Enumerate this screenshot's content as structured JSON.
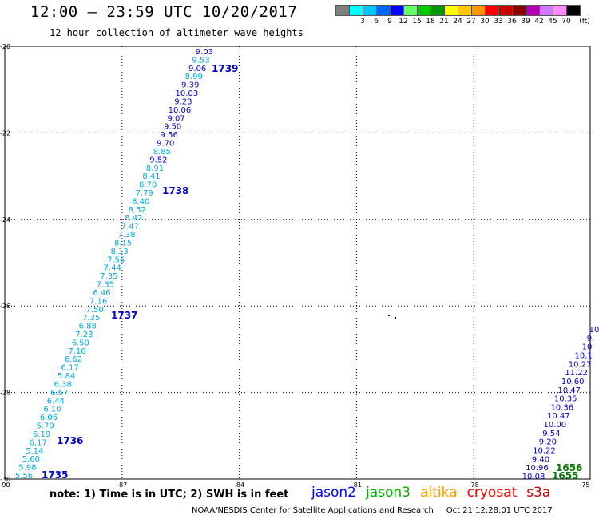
{
  "header": {
    "title": "12:00 — 23:59 UTC 10/20/2017",
    "subtitle": "12 hour collection of altimeter wave heights"
  },
  "legend": {
    "unit": "(ft)",
    "entries": [
      {
        "label": "",
        "color": "#808080"
      },
      {
        "label": "3",
        "color": "#00ffff"
      },
      {
        "label": "6",
        "color": "#00c8ff"
      },
      {
        "label": "9",
        "color": "#0064ff"
      },
      {
        "label": "12",
        "color": "#0000ff"
      },
      {
        "label": "15",
        "color": "#64ff64"
      },
      {
        "label": "18",
        "color": "#00cc00"
      },
      {
        "label": "21",
        "color": "#009600"
      },
      {
        "label": "24",
        "color": "#ffff00"
      },
      {
        "label": "27",
        "color": "#ffc800"
      },
      {
        "label": "30",
        "color": "#ff9600"
      },
      {
        "label": "33",
        "color": "#ff0000"
      },
      {
        "label": "36",
        "color": "#c80000"
      },
      {
        "label": "39",
        "color": "#8b0000"
      },
      {
        "label": "42",
        "color": "#b400b4"
      },
      {
        "label": "45",
        "color": "#d278ff"
      },
      {
        "label": "70",
        "color": "#ff8cff"
      },
      {
        "label": "(ft)",
        "color": "#000000"
      }
    ]
  },
  "map": {
    "lon_range": [
      -90,
      -75
    ],
    "lat_range": [
      -30,
      -20
    ],
    "lon_ticks": [
      "-90",
      "-87",
      "-84",
      "-81",
      "-78",
      "-75"
    ],
    "lat_ticks": [
      "-20",
      "-22",
      "-24",
      "-26",
      "-28",
      "-30"
    ],
    "colors": {
      "light": "#00aadd",
      "dark": "#0000cc",
      "green": "#007700"
    },
    "track1": {
      "values": [
        [
          "9.03",
          "dark"
        ],
        [
          "9.53",
          "light"
        ],
        [
          "9.06",
          "dark"
        ],
        [
          "8.99",
          "light"
        ],
        [
          "9.39",
          "dark"
        ],
        [
          "10.03",
          "dark"
        ],
        [
          "9.23",
          "dark"
        ],
        [
          "10.06",
          "dark"
        ],
        [
          "9.07",
          "dark"
        ],
        [
          "9.50",
          "dark"
        ],
        [
          "9.56",
          "dark"
        ],
        [
          "9.70",
          "dark"
        ],
        [
          "8.85",
          "light"
        ],
        [
          "9.52",
          "dark"
        ],
        [
          "8.91",
          "light"
        ],
        [
          "8.41",
          "light"
        ],
        [
          "8.70",
          "light"
        ],
        [
          "7.79",
          "light"
        ],
        [
          "8.40",
          "light"
        ],
        [
          "8.52",
          "light"
        ],
        [
          "8.42",
          "light"
        ],
        [
          "7.47",
          "light"
        ],
        [
          "7.38",
          "light"
        ],
        [
          "8.15",
          "light"
        ],
        [
          "8.13",
          "light"
        ],
        [
          "7.55",
          "light"
        ],
        [
          "7.44",
          "light"
        ],
        [
          "7.35",
          "light"
        ],
        [
          "7.35",
          "light"
        ],
        [
          "6.46",
          "light"
        ],
        [
          "7.16",
          "light"
        ],
        [
          "7.50",
          "light"
        ],
        [
          "7.35",
          "light"
        ],
        [
          "6.88",
          "light"
        ],
        [
          "7.23",
          "light"
        ],
        [
          "6.50",
          "light"
        ],
        [
          "7.10",
          "light"
        ],
        [
          "6.62",
          "light"
        ],
        [
          "6.17",
          "light"
        ],
        [
          "5.84",
          "light"
        ],
        [
          "6.38",
          "light"
        ],
        [
          "6.67",
          "light"
        ],
        [
          "6.44",
          "light"
        ],
        [
          "6.10",
          "light"
        ],
        [
          "6.06",
          "light"
        ],
        [
          "5.70",
          "light"
        ],
        [
          "6.19",
          "light"
        ],
        [
          "6.17",
          "light"
        ],
        [
          "5.14",
          "light"
        ],
        [
          "5.60",
          "light"
        ],
        [
          "5.98",
          "light"
        ],
        [
          "5.56",
          "light"
        ]
      ],
      "times": [
        "1739",
        "1738",
        "1737",
        "1736",
        "1735"
      ]
    },
    "track2": {
      "values": [
        [
          "10",
          "dark"
        ],
        [
          "9.",
          "dark"
        ],
        [
          "10",
          "dark"
        ],
        [
          "10.1",
          "dark"
        ],
        [
          "10.27",
          "dark"
        ],
        [
          "11.22",
          "dark"
        ],
        [
          "10.60",
          "dark"
        ],
        [
          "10.47",
          "dark"
        ],
        [
          "10.35",
          "dark"
        ],
        [
          "10.36",
          "dark"
        ],
        [
          "10.47",
          "dark"
        ],
        [
          "10.00",
          "dark"
        ],
        [
          "9.54",
          "dark"
        ],
        [
          "9.20",
          "dark"
        ],
        [
          "10.22",
          "dark"
        ],
        [
          "9.40",
          "dark"
        ],
        [
          "10.96",
          "dark"
        ],
        [
          "10.08",
          "dark"
        ]
      ],
      "times": [
        "1656",
        "1655"
      ]
    }
  },
  "footer": {
    "note": "note: 1) Time is in UTC; 2) SWH is in feet",
    "satellites": [
      {
        "name": "jason2",
        "color": "#0000ff"
      },
      {
        "name": "jason3",
        "color": "#00aa00"
      },
      {
        "name": "altika",
        "color": "#ff9900"
      },
      {
        "name": "cryosat",
        "color": "#ff0000"
      },
      {
        "name": "s3a",
        "color": "#cc0000"
      }
    ],
    "credit": "NOAA/NESDIS Center for Satellite Applications and Research",
    "timestamp": "Oct 21 12:28:01 UTC 2017"
  }
}
